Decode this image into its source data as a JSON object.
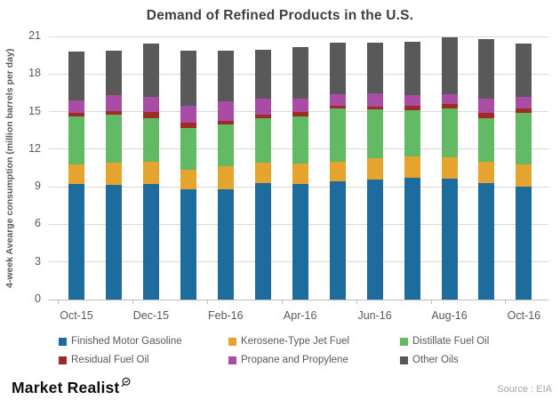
{
  "chart_data": {
    "type": "bar",
    "stacked": true,
    "title": "Demand of Refined Products in the U.S.",
    "ylabel": "4-week Avearge consumption (million barrels per day)",
    "xlabel": "",
    "ylim": [
      0,
      21
    ],
    "yticks": [
      0,
      3,
      6,
      9,
      12,
      15,
      18,
      21
    ],
    "grid": "horizontal",
    "legend_position": "bottom",
    "categories": [
      "Oct-15",
      "Nov-15",
      "Dec-15",
      "Jan-16",
      "Feb-16",
      "Mar-16",
      "Apr-16",
      "May-16",
      "Jun-16",
      "Jul-16",
      "Aug-16",
      "Sep-16",
      "Oct-16"
    ],
    "shown_x_labels": [
      "Oct-15",
      "Dec-15",
      "Feb-16",
      "Apr-16",
      "Jun-16",
      "Aug-16",
      "Oct-16"
    ],
    "x_tick_shown_every": 2,
    "series": [
      {
        "name": "Finished Motor Gasoline",
        "color": "#1E6C9E",
        "values": [
          9.2,
          9.15,
          9.2,
          8.8,
          8.8,
          9.3,
          9.25,
          9.45,
          9.6,
          9.7,
          9.65,
          9.3,
          9.0
        ]
      },
      {
        "name": "Kerosene-Type Jet Fuel",
        "color": "#E4A42E",
        "values": [
          1.6,
          1.75,
          1.8,
          1.55,
          1.85,
          1.65,
          1.6,
          1.55,
          1.65,
          1.7,
          1.7,
          1.7,
          1.75
        ]
      },
      {
        "name": "Distillate Fuel Oil",
        "color": "#62BA64",
        "values": [
          3.8,
          3.85,
          3.5,
          3.35,
          3.3,
          3.5,
          3.8,
          4.25,
          3.9,
          3.7,
          3.9,
          3.5,
          4.15
        ]
      },
      {
        "name": "Residual Fuel Oil",
        "color": "#9E2B25",
        "values": [
          0.3,
          0.3,
          0.45,
          0.45,
          0.3,
          0.3,
          0.35,
          0.25,
          0.25,
          0.4,
          0.35,
          0.4,
          0.35
        ]
      },
      {
        "name": "Propane and Propylene",
        "color": "#A84CA4",
        "values": [
          1.0,
          1.25,
          1.25,
          1.35,
          1.6,
          1.3,
          1.0,
          0.9,
          1.05,
          0.8,
          0.8,
          1.15,
          0.95
        ]
      },
      {
        "name": "Other Oils",
        "color": "#595959",
        "values": [
          3.9,
          3.6,
          4.2,
          4.4,
          4.0,
          3.9,
          4.15,
          4.1,
          4.05,
          4.25,
          4.5,
          4.75,
          4.25
        ]
      }
    ],
    "colors": {
      "title_text": "#3F3F3F",
      "axis_text": "#595959",
      "gridline": "#D9D9D9",
      "axis_line": "#BFBFBF",
      "source_text": "#A6A6A6",
      "logo_text": "#0D0D0D"
    }
  },
  "branding": {
    "logo_text": "Market Realist",
    "logo_icon": "magnifier-chart-icon"
  },
  "source": {
    "label": "Source : EIA"
  }
}
